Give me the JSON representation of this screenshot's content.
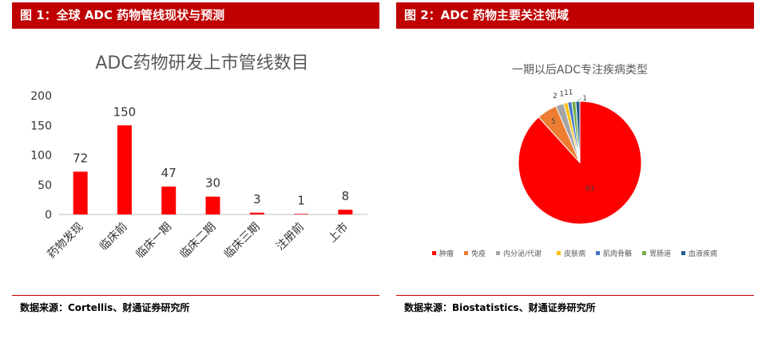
{
  "figure1": {
    "header": "图 1：全球 ADC 药物管线现状与预测",
    "source": "数据来源：Cortellis、财通证券研究所",
    "chart_data": {
      "type": "bar",
      "title": "ADC药物研发上市管线数目",
      "categories": [
        "药物发现",
        "临床前",
        "临床一期",
        "临床二期",
        "临床三期",
        "注册前",
        "上市"
      ],
      "values": [
        72,
        150,
        47,
        30,
        3,
        1,
        8
      ],
      "ylim": [
        0,
        200
      ],
      "yticks": [
        0,
        50,
        100,
        150,
        200
      ],
      "color": "#ff0000",
      "grid": false
    }
  },
  "figure2": {
    "header": "图 2：ADC 药物主要关注领域",
    "source": "数据来源：Biostatistics、财通证券研究所",
    "chart_data": {
      "type": "pie",
      "title": "一期以后ADC专注疾病类型",
      "labels": [
        "肿瘤",
        "免疫",
        "内分泌/代谢",
        "皮肤病",
        "肌肉骨骼",
        "胃肠道",
        "血液疾病"
      ],
      "values": [
        83,
        5,
        2,
        1,
        1,
        1,
        1
      ],
      "colors": [
        "#ff0000",
        "#ed7d31",
        "#a5a5a5",
        "#ffc000",
        "#4472c4",
        "#70ad47",
        "#255e91"
      ],
      "legend_position": "bottom"
    }
  }
}
